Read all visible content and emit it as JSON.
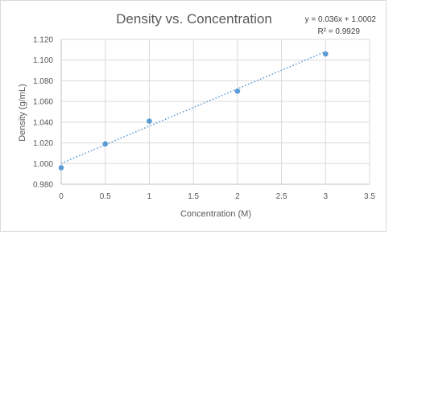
{
  "chart_data": {
    "type": "scatter",
    "title": "Density vs. Concentration",
    "xlabel": "Concentration (M)",
    "ylabel": "Density (g/mL)",
    "xlim": [
      0,
      3.5
    ],
    "ylim": [
      0.98,
      1.12
    ],
    "x_ticks": [
      "0",
      "0.5",
      "1",
      "1.5",
      "2",
      "2.5",
      "3",
      "3.5"
    ],
    "y_ticks": [
      "0.980",
      "1.000",
      "1.020",
      "1.040",
      "1.060",
      "1.080",
      "1.100",
      "1.120"
    ],
    "grid": true,
    "series": [
      {
        "x": [
          0,
          0.5,
          1,
          2,
          3
        ],
        "y": [
          0.996,
          1.019,
          1.041,
          1.07,
          1.106
        ],
        "color": "#5b9bd5"
      }
    ],
    "trendline": {
      "type": "linear",
      "slope": 0.036,
      "intercept": 1.0002,
      "x_range": [
        0,
        3
      ],
      "equation_label": "y = 0.036x + 1.0002",
      "r2_label": "R² = 0.9929",
      "style": "dotted"
    }
  }
}
